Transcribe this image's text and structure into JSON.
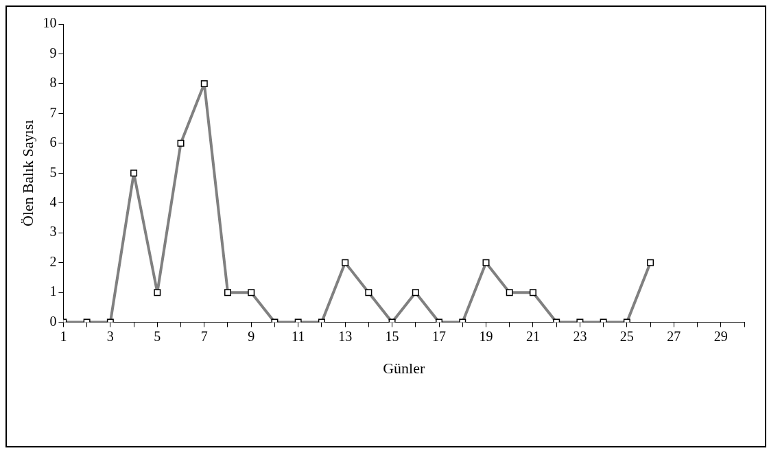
{
  "chart_data": {
    "type": "line",
    "xlabel": "Günler",
    "ylabel": "Ölen Balık Sayısı",
    "x": [
      1,
      2,
      3,
      4,
      5,
      6,
      7,
      8,
      9,
      10,
      11,
      12,
      13,
      14,
      15,
      16,
      17,
      18,
      19,
      20,
      21,
      22,
      23,
      24,
      25,
      26
    ],
    "series": [
      {
        "color": "#808080",
        "values": [
          0,
          0,
          0,
          5,
          1,
          6,
          8,
          1,
          1,
          0,
          0,
          0,
          2,
          1,
          0,
          1,
          0,
          0,
          2,
          1,
          1,
          0,
          0,
          0,
          0,
          2
        ]
      }
    ],
    "xlim": [
      1,
      30
    ],
    "xticks": [
      1,
      {
        "value": 2,
        "label": null
      },
      3,
      {
        "value": 4,
        "label": null
      },
      5,
      {
        "value": 6,
        "label": null
      },
      7,
      {
        "value": 8,
        "label": null
      },
      9,
      {
        "value": 10,
        "label": null
      },
      11,
      {
        "value": 12,
        "label": null
      },
      13,
      {
        "value": 14,
        "label": null
      },
      15,
      {
        "value": 16,
        "label": null
      },
      17,
      {
        "value": 18,
        "label": null
      },
      19,
      {
        "value": 20,
        "label": null
      },
      21,
      {
        "value": 22,
        "label": null
      },
      23,
      {
        "value": 24,
        "label": null
      },
      25,
      {
        "value": 26,
        "label": null
      },
      27,
      {
        "value": 28,
        "label": null
      },
      29,
      {
        "value": 30,
        "label": null
      }
    ],
    "ylim": [
      0,
      10
    ],
    "yticks": [
      0,
      1,
      2,
      3,
      4,
      5,
      6,
      7,
      8,
      9,
      10
    ],
    "grid": false,
    "legend": false,
    "marker": "square",
    "line_style": "solid"
  }
}
